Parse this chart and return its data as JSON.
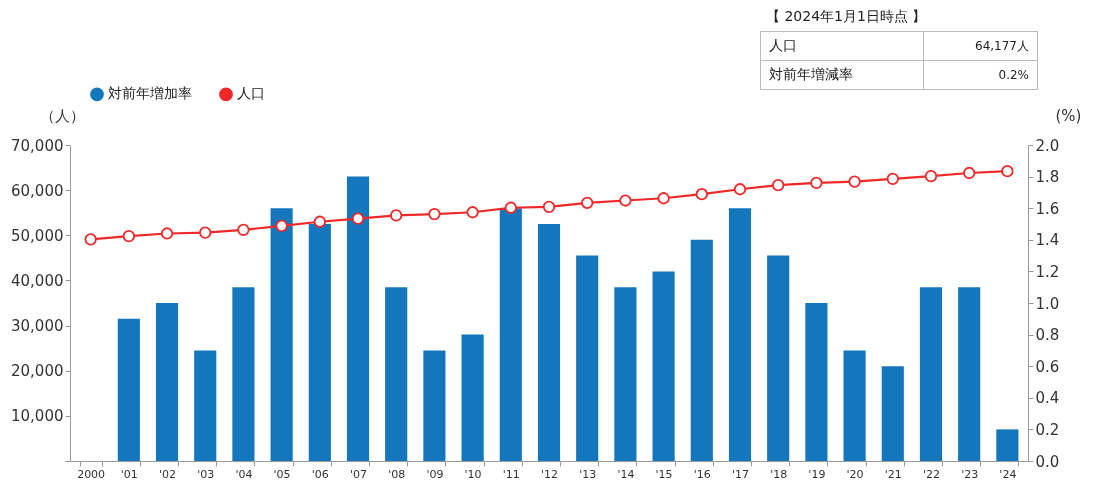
{
  "chart_data": {
    "type": "bar",
    "categories": [
      "2000",
      "'01",
      "'02",
      "'03",
      "'04",
      "'05",
      "'06",
      "'07",
      "'08",
      "'09",
      "'10",
      "'11",
      "'12",
      "'13",
      "'14",
      "'15",
      "'16",
      "'17",
      "'18",
      "'19",
      "'20",
      "'21",
      "'22",
      "'23",
      "'24"
    ],
    "series": [
      {
        "name": "対前年増加率",
        "axis": "y2",
        "color": "#1477bd",
        "values": [
          null,
          0.9,
          1.0,
          0.7,
          1.1,
          1.6,
          1.5,
          1.8,
          1.1,
          0.7,
          0.8,
          1.6,
          1.5,
          1.3,
          1.1,
          1.2,
          1.4,
          1.6,
          1.3,
          1.0,
          0.7,
          0.6,
          1.1,
          1.1,
          0.2
        ]
      },
      {
        "name": "人口",
        "type": "line",
        "axis": "y",
        "color": "#f02828",
        "values": [
          49100,
          49800,
          50400,
          50600,
          51200,
          52100,
          53000,
          53700,
          54400,
          54700,
          55100,
          56100,
          56300,
          57200,
          57700,
          58200,
          59100,
          60200,
          61100,
          61600,
          61900,
          62500,
          63100,
          63800,
          64200
        ]
      }
    ],
    "ylabel": "（人）",
    "y2label": "(%)",
    "ylim": [
      0,
      70000
    ],
    "yticks": [
      {
        "value": 0,
        "label": null
      },
      {
        "value": 10000,
        "label": "10,000"
      },
      {
        "value": 20000,
        "label": "20,000"
      },
      {
        "value": 30000,
        "label": "30,000"
      },
      {
        "value": 40000,
        "label": "40,000"
      },
      {
        "value": 50000,
        "label": "50,000"
      },
      {
        "value": 60000,
        "label": "60,000"
      },
      {
        "value": 70000,
        "label": "70,000"
      }
    ],
    "y2lim": [
      0,
      2.0
    ],
    "y2ticks": [
      {
        "value": 0,
        "label": "0.0"
      },
      0.2,
      0.4,
      0.6,
      0.8,
      {
        "value": 1,
        "label": "1.0"
      },
      1.2,
      1.4,
      1.6,
      1.8,
      {
        "value": 2,
        "label": "2.0"
      }
    ],
    "marker": "circle",
    "legend": "top left",
    "annotations": [
      "【 2024年1月1日時点 】",
      "人口",
      "64,177人",
      "対前年増減率",
      "0.2%"
    ]
  }
}
